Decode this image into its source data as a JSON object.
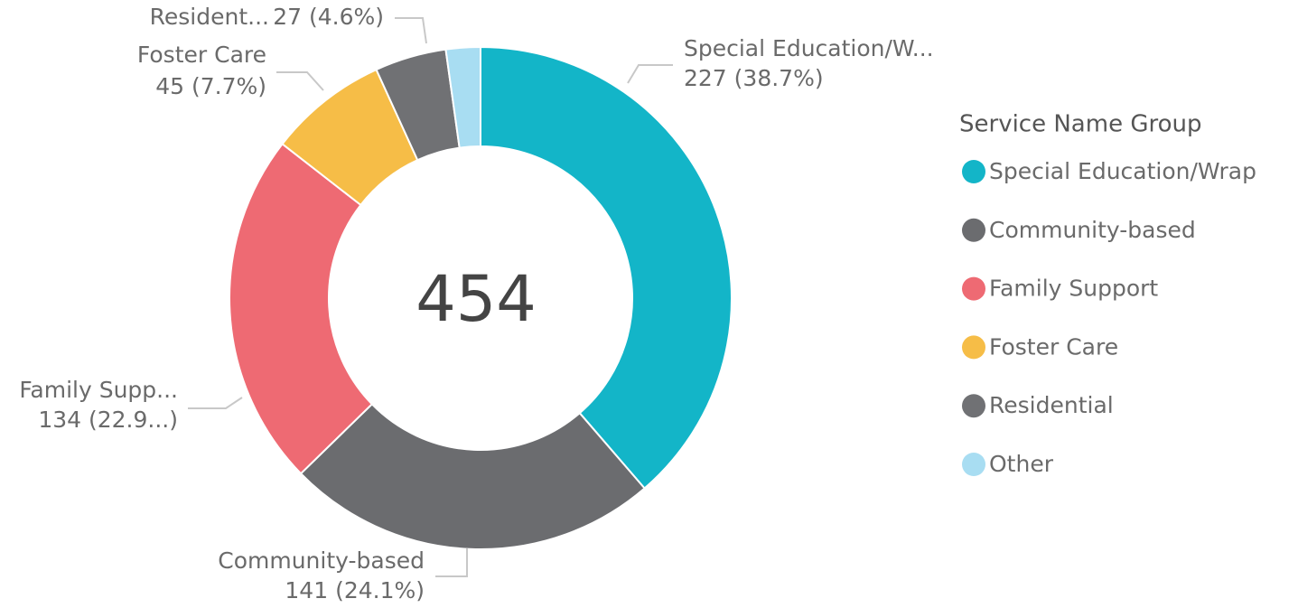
{
  "chart_data": {
    "type": "donut",
    "center_label": "454",
    "legend_title": "Service Name Group",
    "categories": [
      "Special Education/Wrap",
      "Community-based",
      "Family Support",
      "Foster Care",
      "Residential",
      "Other"
    ],
    "values": [
      227,
      141,
      134,
      45,
      27,
      13
    ],
    "colors": [
      "#13b5c8",
      "#6b6c6f",
      "#ee6a73",
      "#f6bd47",
      "#707174",
      "#a8ddf2"
    ],
    "slice_labels": [
      "Special Education/W...",
      "Community-based",
      "Family Supp...",
      "Foster Care",
      "Resident...",
      null
    ],
    "value_labels": [
      "227 (38.7%)",
      "141 (24.1%)",
      "134 (22.9...)",
      "45 (7.7%)",
      "27 (4.6%)",
      null
    ],
    "legend_position": "right"
  }
}
